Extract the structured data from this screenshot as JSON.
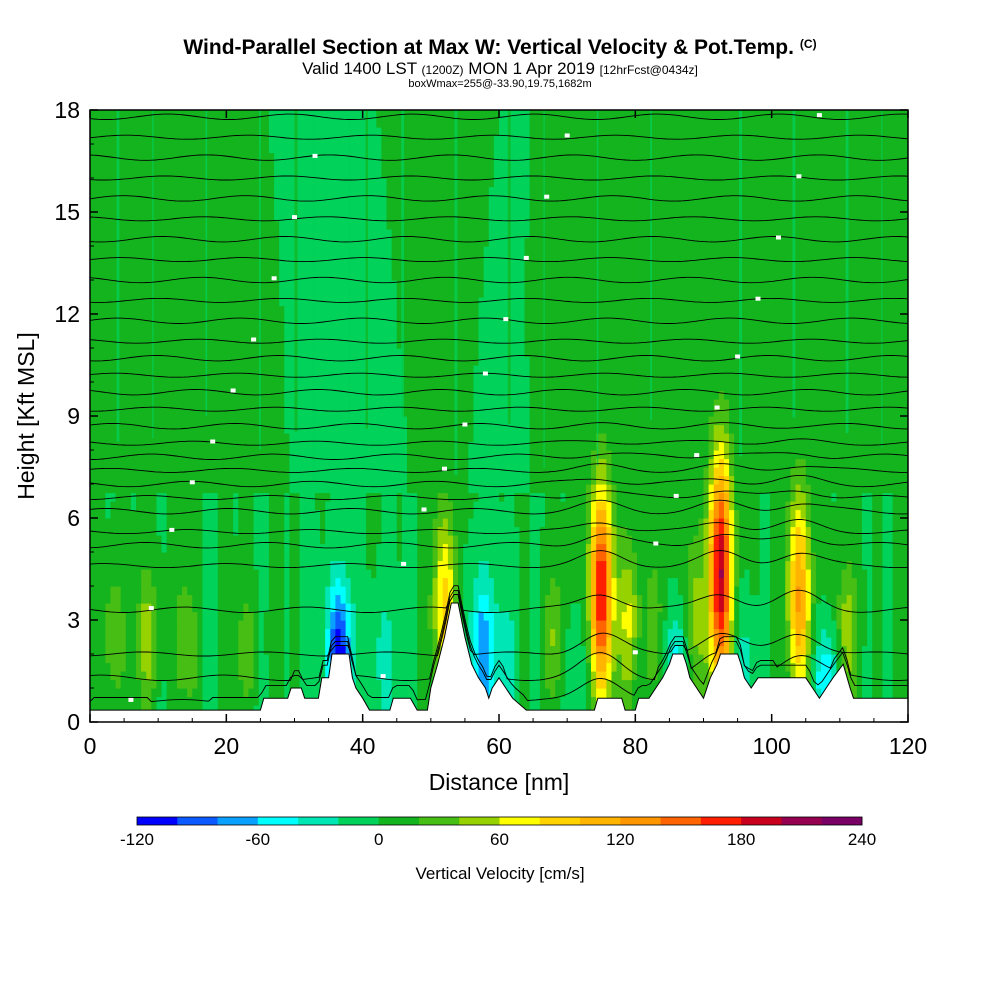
{
  "title": "Wind-Parallel Section at Max W: Vertical Velocity & Pot.Temp.",
  "title_mark": "(C)",
  "subtitle": {
    "valid": "Valid 1400 LST",
    "utc": "(1200Z)",
    "date": "MON 1 Apr 2019",
    "fcst": "[12hrFcst@0434z]"
  },
  "box_line": "boxWmax=255@-33.90,19.75,1682m",
  "chart_data": {
    "type": "heatmap",
    "title": "Wind-Parallel Section at Max W: Vertical Velocity & Pot.Temp.",
    "xlabel": "Distance [nm]",
    "ylabel": "Height [Kft MSL]",
    "xlim": [
      0,
      120
    ],
    "ylim": [
      0,
      18
    ],
    "x_ticks": [
      "0",
      "20",
      "40",
      "60",
      "80",
      "100",
      "120"
    ],
    "y_ticks": [
      "0",
      "3",
      "6",
      "9",
      "12",
      "15",
      "18"
    ],
    "background_value": 0,
    "updrafts": [
      {
        "x": 75,
        "peak": 180,
        "top": 6.2
      },
      {
        "x": 92.5,
        "peak": 200,
        "top": 7.0
      },
      {
        "x": 104,
        "peak": 120,
        "top": 6.0
      },
      {
        "x": 52,
        "peak": 90,
        "top": 5.5
      },
      {
        "x": 79,
        "peak": 60,
        "top": 4.8
      },
      {
        "x": 111,
        "peak": 50,
        "top": 4.2
      },
      {
        "x": 88.5,
        "peak": 50,
        "top": 5.0
      },
      {
        "x": 3.5,
        "peak": 40,
        "top": 4.0
      },
      {
        "x": 8.5,
        "peak": 50,
        "top": 4.0
      },
      {
        "x": 14,
        "peak": 40,
        "top": 3.8
      },
      {
        "x": 23,
        "peak": 30,
        "top": 3.5
      },
      {
        "x": 68,
        "peak": 40,
        "top": 4.0
      },
      {
        "x": 83,
        "peak": 30,
        "top": 4.5
      }
    ],
    "downdrafts": [
      {
        "x": 36.5,
        "peak": -120,
        "top": 4.8
      },
      {
        "x": 43,
        "peak": -30,
        "top": 4.5
      },
      {
        "x": 57.5,
        "peak": -80,
        "top": 5.0
      },
      {
        "x": 61,
        "peak": -30,
        "top": 4.5
      },
      {
        "x": 86,
        "peak": -60,
        "top": 4.0
      },
      {
        "x": 96,
        "peak": -30,
        "top": 4.0
      },
      {
        "x": 108,
        "peak": -60,
        "top": 3.2
      },
      {
        "x": 71,
        "peak": -20,
        "top": 4.0
      }
    ],
    "terrain": [
      [
        0,
        0.35
      ],
      [
        25,
        0.35
      ],
      [
        25.5,
        0.7
      ],
      [
        29,
        0.7
      ],
      [
        29.5,
        1.0
      ],
      [
        31,
        1.0
      ],
      [
        31.5,
        0.7
      ],
      [
        33.5,
        0.7
      ],
      [
        34,
        1.3
      ],
      [
        35,
        1.3
      ],
      [
        35.5,
        2.0
      ],
      [
        38,
        2.0
      ],
      [
        38.5,
        1.3
      ],
      [
        39,
        1.0
      ],
      [
        40,
        0.7
      ],
      [
        41,
        0.35
      ],
      [
        44,
        0.35
      ],
      [
        44.5,
        0.7
      ],
      [
        47,
        0.7
      ],
      [
        48,
        0.35
      ],
      [
        49.5,
        0.35
      ],
      [
        50,
        1.0
      ],
      [
        51,
        1.7
      ],
      [
        52,
        2.5
      ],
      [
        53,
        3.5
      ],
      [
        54,
        3.5
      ],
      [
        55,
        2.5
      ],
      [
        56,
        1.7
      ],
      [
        57,
        1.3
      ],
      [
        58,
        1.0
      ],
      [
        58.5,
        0.7
      ],
      [
        59,
        1.0
      ],
      [
        60,
        1.3
      ],
      [
        61,
        1.0
      ],
      [
        62,
        0.7
      ],
      [
        64,
        0.35
      ],
      [
        70,
        0.35
      ],
      [
        74,
        0.35
      ],
      [
        74.5,
        0.7
      ],
      [
        78,
        0.7
      ],
      [
        78.5,
        0.35
      ],
      [
        80,
        0.35
      ],
      [
        80.5,
        0.7
      ],
      [
        82,
        0.7
      ],
      [
        83,
        1.0
      ],
      [
        84,
        1.3
      ],
      [
        85,
        1.7
      ],
      [
        85.5,
        2.0
      ],
      [
        87,
        2.0
      ],
      [
        87.5,
        1.7
      ],
      [
        88,
        1.3
      ],
      [
        89,
        1.0
      ],
      [
        90,
        0.7
      ],
      [
        91,
        1.3
      ],
      [
        92,
        1.7
      ],
      [
        92.5,
        2.0
      ],
      [
        95,
        2.0
      ],
      [
        95.5,
        1.7
      ],
      [
        96,
        1.3
      ],
      [
        97,
        1.0
      ],
      [
        98,
        1.3
      ],
      [
        105,
        1.3
      ],
      [
        106,
        1.0
      ],
      [
        107,
        0.7
      ],
      [
        108,
        1.0
      ],
      [
        109,
        1.3
      ],
      [
        110.5,
        1.7
      ],
      [
        111.5,
        1.0
      ],
      [
        112,
        0.7
      ],
      [
        114,
        0.7
      ],
      [
        120,
        0.7
      ]
    ],
    "theta_contour_heights_kft": [
      0.6,
      1.3,
      2.0,
      3.3,
      4.6,
      5.2,
      5.6,
      6.2,
      6.6,
      7.0,
      7.4,
      7.8,
      8.2,
      8.7,
      9.2,
      9.7,
      10.2,
      10.7,
      11.2,
      11.8,
      12.4,
      13.0,
      13.6,
      14.2,
      14.8,
      15.4,
      16.0,
      16.6,
      17.2,
      17.8
    ],
    "colorbar": {
      "label": "Vertical Velocity [cm/s]",
      "levels": [
        -120,
        -100,
        -80,
        -60,
        -40,
        -20,
        0,
        20,
        40,
        60,
        80,
        100,
        120,
        140,
        160,
        180,
        200,
        220,
        240
      ],
      "colors": [
        "#0000ff",
        "#0a5aff",
        "#0aa0ff",
        "#00ffff",
        "#00e6b4",
        "#00d25a",
        "#14b41e",
        "#46be14",
        "#96d200",
        "#ffff00",
        "#ffd200",
        "#ffb400",
        "#ff9600",
        "#ff6400",
        "#ff1e00",
        "#c8001e",
        "#960050",
        "#780064"
      ],
      "tick_labels": [
        "-120",
        "-60",
        "0",
        "60",
        "120",
        "180",
        "240"
      ]
    }
  }
}
